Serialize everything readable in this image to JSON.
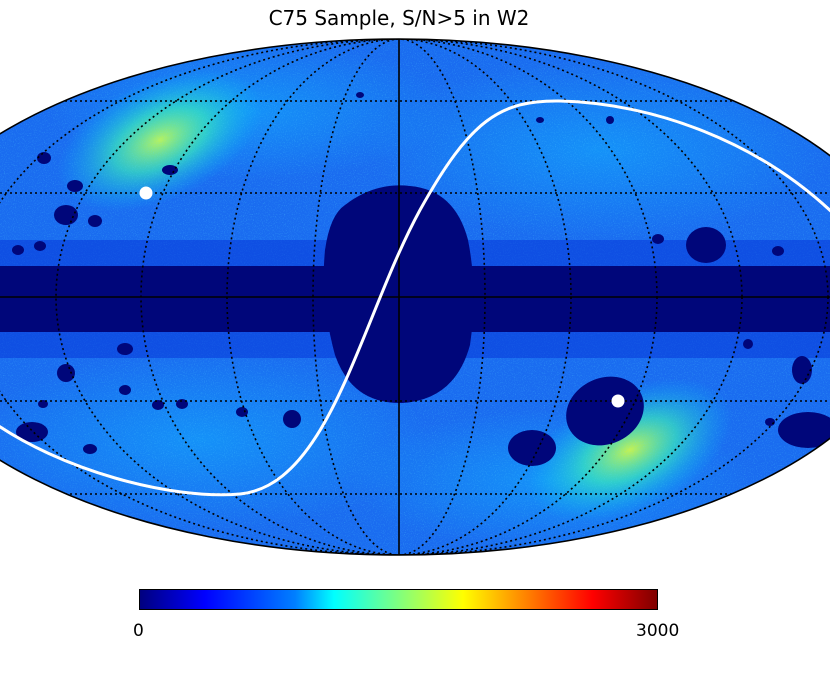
{
  "title": "C75 Sample, S/N>5 in W2",
  "colorbar": {
    "min_label": "0",
    "max_label": "3000",
    "colormap": "jet",
    "colors": [
      "#00007f",
      "#0000ff",
      "#007fff",
      "#00ffff",
      "#7fff7f",
      "#ffff00",
      "#ff7f00",
      "#ff0000",
      "#7f0000"
    ]
  },
  "map": {
    "projection": "Mollweide",
    "background_color": "#1a6cf0",
    "masked_color": "#00067a",
    "ecliptic_line_color": "#ffffff",
    "pole_markers_color": "#ffffff",
    "graticule_style": "dotted-black"
  }
}
